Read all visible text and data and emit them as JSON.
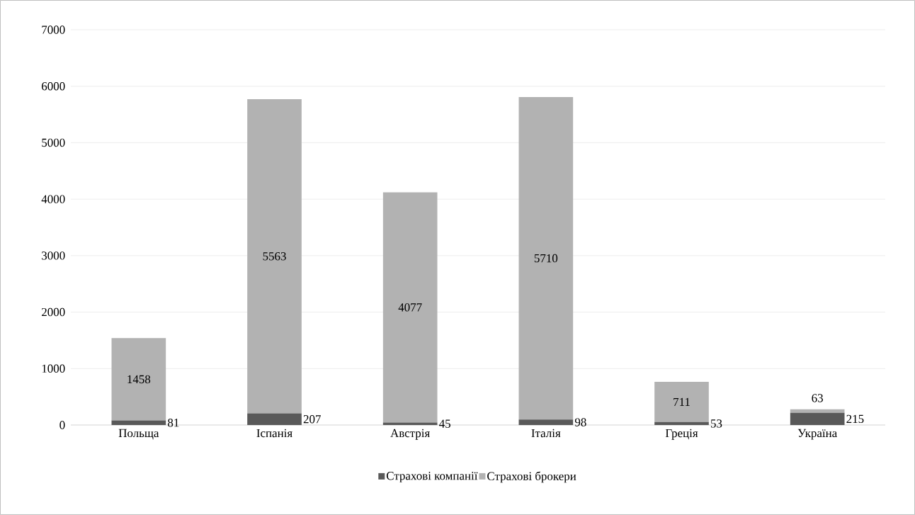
{
  "chart_data": {
    "type": "bar",
    "stacked": true,
    "categories": [
      "Польща",
      "Іспанія",
      "Австрія",
      "Італія",
      "Греція",
      "Україна"
    ],
    "series": [
      {
        "name": "Страхові компанії",
        "color": "#595959",
        "values": [
          81,
          207,
          45,
          98,
          53,
          215
        ]
      },
      {
        "name": "Страхові брокери",
        "color": "#b2b2b2",
        "values": [
          1458,
          5563,
          4077,
          5710,
          711,
          63
        ]
      }
    ],
    "ylim": [
      0,
      7000
    ],
    "yticks": [
      0,
      1000,
      2000,
      3000,
      4000,
      5000,
      6000,
      7000
    ],
    "grid": "y",
    "legend": "bottom",
    "data_labels": true
  }
}
